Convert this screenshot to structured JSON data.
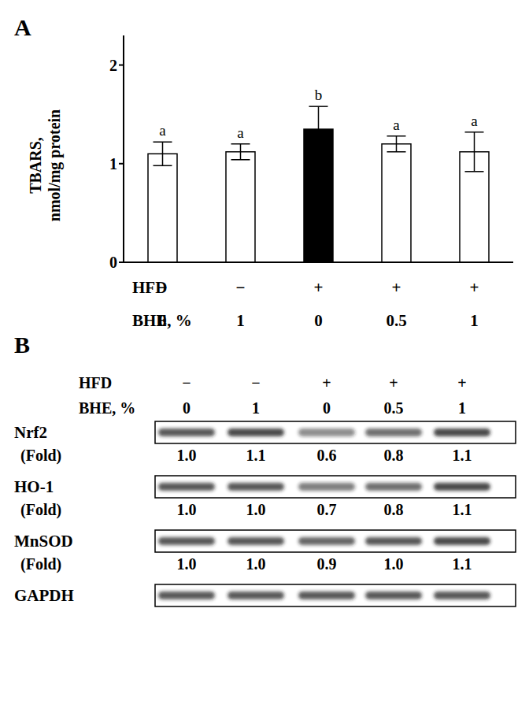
{
  "chart_data": {
    "type": "bar",
    "panel_label": "A",
    "y_label": "TBARS, nmol/mg protein",
    "categories": [
      null,
      null,
      null,
      null,
      null
    ],
    "values": [
      1.1,
      1.12,
      1.35,
      1.2,
      1.12
    ],
    "errors": [
      0.12,
      0.08,
      0.23,
      0.08,
      0.2
    ],
    "colors": [
      "#ffffff",
      "#ffffff",
      "#000000",
      "#ffffff",
      "#ffffff"
    ],
    "ylim": [
      0,
      2.3
    ],
    "yticks": [
      0,
      1,
      2
    ],
    "annotations": [
      "a",
      "a",
      "b",
      "a",
      "a"
    ],
    "condition_rows": [
      {
        "label": "HFD",
        "values": [
          "−",
          "−",
          "+",
          "+",
          "+"
        ]
      },
      {
        "label": "BHE, %",
        "values": [
          "0",
          "1",
          "0",
          "0.5",
          "1"
        ]
      }
    ]
  },
  "blot": {
    "panel_label": "B",
    "condition_rows": [
      {
        "label": "HFD",
        "values": [
          "−",
          "−",
          "+",
          "+",
          "+"
        ]
      },
      {
        "label": "BHE, %",
        "values": [
          "0",
          "1",
          "0",
          "0.5",
          "1"
        ]
      }
    ],
    "fold_label": "(Fold)",
    "rows": [
      {
        "name": "Nrf2",
        "fold": [
          "1.0",
          "1.1",
          "0.6",
          "0.8",
          "1.1"
        ]
      },
      {
        "name": "HO-1",
        "fold": [
          "1.0",
          "1.0",
          "0.7",
          "0.8",
          "1.1"
        ]
      },
      {
        "name": "MnSOD",
        "fold": [
          "1.0",
          "1.0",
          "0.9",
          "1.0",
          "1.1"
        ]
      },
      {
        "name": "GAPDH"
      }
    ]
  }
}
